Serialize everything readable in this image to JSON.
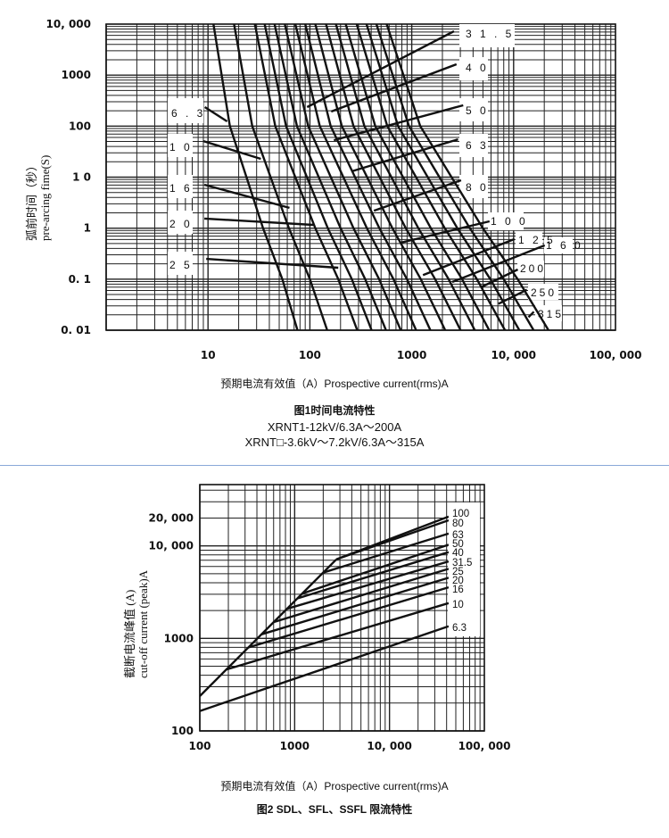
{
  "chart_data": [
    {
      "type": "line",
      "title": "图1时间电流特性",
      "subtitle_lines": [
        "XRNT1-12kV/6.3A～200A",
        "XRNT□-3.6kV～7.2kV/6.3A～315A"
      ],
      "xlabel": "预期电流有效值（A）Prospective current(rms)A",
      "ylabel_cn": "弧前时间（秒）",
      "ylabel_en": "pre-arcing fime(S)",
      "xscale": "log",
      "yscale": "log",
      "xlim": [
        1,
        100000
      ],
      "ylim": [
        0.01,
        10000
      ],
      "grid": true,
      "x_ticks": [
        {
          "v": 10,
          "label": "10"
        },
        {
          "v": 100,
          "label": "100"
        },
        {
          "v": 1000,
          "label": "1000"
        },
        {
          "v": 10000,
          "label": "10, 000"
        },
        {
          "v": 100000,
          "label": "100, 000"
        }
      ],
      "y_ticks": [
        {
          "v": 10000,
          "label": "10, 000"
        },
        {
          "v": 1000,
          "label": "1000"
        },
        {
          "v": 100,
          "label": "100"
        },
        {
          "v": 10,
          "label": "1 0"
        },
        {
          "v": 1,
          "label": "1"
        },
        {
          "v": 0.1,
          "label": "0. 1"
        },
        {
          "v": 0.01,
          "label": "0. 01"
        }
      ],
      "series_times": [
        10000,
        100,
        1,
        0.1,
        0.01
      ],
      "series": [
        {
          "name": "6.3",
          "label": "6 . 3",
          "currents": [
            11.3,
            16.4,
            34.7,
            53.6,
            75.6
          ],
          "leader": [
            [
              9.3,
              236
            ],
            [
              15.4,
              124
            ]
          ]
        },
        {
          "name": "10",
          "label": "1 0",
          "currents": [
            18,
            27.2,
            62.3,
            100,
            148
          ],
          "leader": [
            [
              9.0,
              51
            ],
            [
              33,
              22.8
            ]
          ]
        },
        {
          "name": "16",
          "label": "1 6",
          "currents": [
            28.8,
            45.7,
            113,
            190,
            292
          ],
          "leader": [
            [
              9.2,
              7.1
            ],
            [
              63,
              2.5
            ]
          ]
        },
        {
          "name": "20",
          "label": "2 0",
          "currents": [
            36,
            58.4,
            150,
            258,
            404
          ],
          "leader": [
            [
              9.2,
              1.54
            ],
            [
              108,
              1.16
            ]
          ]
        },
        {
          "name": "25",
          "label": "2 5",
          "currents": [
            45,
            74.6,
            200,
            349,
            558
          ],
          "leader": [
            [
              9.6,
              0.25
            ],
            [
              190,
              0.168
            ]
          ]
        },
        {
          "name": "31.5",
          "label": "3 1 . 5",
          "currents": [
            56.7,
            96.2,
            268,
            478,
            780
          ],
          "leader": [
            [
              94,
              236
            ],
            [
              2600,
              7244
            ]
          ]
        },
        {
          "name": "40",
          "label": "4 0",
          "currents": [
            72,
            125,
            363,
            662,
            1103
          ],
          "leader": [
            [
              162,
              193
            ],
            [
              2750,
              1630
            ]
          ]
        },
        {
          "name": "50",
          "label": "5 0",
          "currents": [
            90,
            160,
            481,
            896,
            1525
          ],
          "leader": [
            [
              172,
              53
            ],
            [
              3200,
              256
            ]
          ]
        },
        {
          "name": "63",
          "label": "6 3",
          "currents": [
            113,
            206,
            645,
            1227,
            2130
          ],
          "leader": [
            [
              257,
              13
            ],
            [
              2850,
              55
            ]
          ]
        },
        {
          "name": "80",
          "label": "8 0",
          "currents": [
            144,
            268,
            874,
            1697,
            3014
          ],
          "leader": [
            [
              425,
              2.2
            ],
            [
              3050,
              8.7
            ]
          ]
        },
        {
          "name": "100",
          "label": "1 0 0",
          "currents": [
            180,
            343,
            1160,
            2299,
            4164
          ],
          "leader": [
            [
              780,
              0.52
            ],
            [
              5800,
              1.36
            ]
          ]
        },
        {
          "name": "125",
          "label": "1 2 5",
          "currents": [
            225,
            438,
            1541,
            3117,
            5753
          ],
          "leader": [
            [
              1290,
              0.12
            ],
            [
              10200,
              0.61
            ]
          ]
        },
        {
          "name": "160",
          "label": "1 6 0",
          "currents": [
            288,
            575,
            2110,
            4356,
            8229
          ],
          "leader": [
            [
              2500,
              0.088
            ],
            [
              20200,
              0.46
            ]
          ]
        },
        {
          "name": "200",
          "label": "200",
          "currents": [
            360,
            735,
            2800,
            5906,
            11369
          ],
          "leader": [
            [
              4750,
              0.069
            ],
            [
              11000,
              0.155
            ]
          ]
        },
        {
          "name": "250",
          "label": "250",
          "currents": [
            450,
            939,
            3714,
            7998,
            15717
          ],
          "leader": [
            [
              7100,
              0.033
            ],
            [
              13500,
              0.062
            ]
          ]
        },
        {
          "name": "315",
          "label": "315",
          "currents": [
            567,
            1211,
            4986,
            10951,
            21995
          ],
          "leader": [
            [
              14000,
              0.018
            ],
            [
              15800,
              0.023
            ]
          ]
        }
      ]
    },
    {
      "type": "line",
      "title": "图2 SDL、SFL、SSFL 限流特性",
      "xlabel": "预期电流有效值（A）Prospective current(rms)A",
      "ylabel_cn": "截断电流峰值 (A)",
      "ylabel_en": "cut-off current (peak)A",
      "xscale": "log",
      "yscale": "log",
      "xlim": [
        100,
        100000
      ],
      "ylim": [
        100,
        46000
      ],
      "grid": true,
      "x_ticks": [
        {
          "v": 100,
          "label": "100"
        },
        {
          "v": 1000,
          "label": "1000"
        },
        {
          "v": 10000,
          "label": "10, 000"
        },
        {
          "v": 100000,
          "label": "100, 000"
        }
      ],
      "y_ticks": [
        {
          "v": 20000,
          "label": "20, 000"
        },
        {
          "v": 10000,
          "label": "10, 000"
        },
        {
          "v": 1000,
          "label": "1000"
        },
        {
          "v": 100,
          "label": "100"
        }
      ],
      "envelope": [
        [
          100,
          238
        ],
        [
          2760,
          7160
        ]
      ],
      "series": [
        {
          "name": "100",
          "points": [
            [
              2760,
              7160
            ],
            [
              42000,
              20700
            ]
          ]
        },
        {
          "name": "80",
          "points": [
            [
              2760,
              7160
            ],
            [
              42000,
              18900
            ]
          ]
        },
        {
          "name": "63",
          "points": [
            [
              1990,
              5130
            ],
            [
              42000,
              13600
            ]
          ]
        },
        {
          "name": "50",
          "points": [
            [
              1200,
              3050
            ],
            [
              42000,
              10300
            ]
          ]
        },
        {
          "name": "40",
          "points": [
            [
              1070,
              2710
            ],
            [
              42000,
              8560
            ]
          ]
        },
        {
          "name": "31.5",
          "points": [
            [
              830,
              2090
            ],
            [
              42000,
              6800
            ]
          ]
        },
        {
          "name": "25",
          "points": [
            [
              600,
              1500
            ],
            [
              42000,
              5650
            ]
          ]
        },
        {
          "name": "20",
          "points": [
            [
              450,
              1110
            ],
            [
              42000,
              4520
            ]
          ]
        },
        {
          "name": "16",
          "points": [
            [
              325,
              798
            ],
            [
              42000,
              3570
            ]
          ]
        },
        {
          "name": "10",
          "points": [
            [
              190,
              460
            ],
            [
              42000,
              2410
            ]
          ]
        },
        {
          "name": "6.3",
          "points": [
            [
              100,
              164
            ],
            [
              42000,
              1350
            ]
          ]
        }
      ]
    }
  ]
}
